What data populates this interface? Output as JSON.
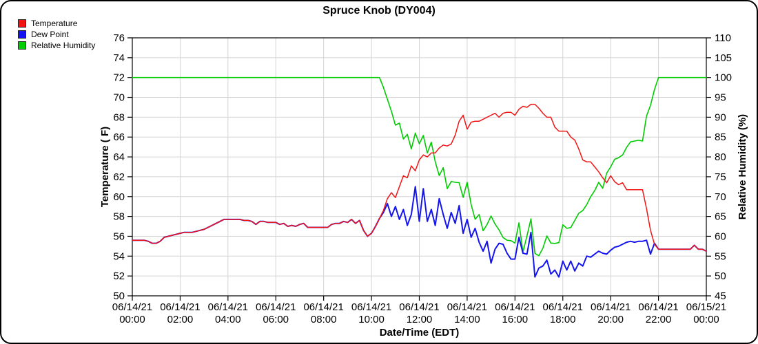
{
  "title": "Spruce Knob (DY004)",
  "legend": {
    "items": [
      {
        "label": "Temperature",
        "color": "#f01414"
      },
      {
        "label": "Dew Point",
        "color": "#1414f0"
      },
      {
        "label": "Relative Humidity",
        "color": "#00cc00"
      }
    ]
  },
  "chart_data": {
    "type": "line",
    "title": "Spruce Knob (DY004)",
    "grid": true,
    "legend_position": "top-left",
    "x_axis": {
      "label": "Date/Time (EDT)",
      "range_hours": [
        0,
        24
      ],
      "tick_hours": [
        0,
        2,
        4,
        6,
        8,
        10,
        12,
        14,
        16,
        18,
        20,
        22,
        24
      ],
      "ticks": [
        {
          "date": "06/14/21",
          "time": "00:00"
        },
        {
          "date": "06/14/21",
          "time": "02:00"
        },
        {
          "date": "06/14/21",
          "time": "04:00"
        },
        {
          "date": "06/14/21",
          "time": "06:00"
        },
        {
          "date": "06/14/21",
          "time": "08:00"
        },
        {
          "date": "06/14/21",
          "time": "10:00"
        },
        {
          "date": "06/14/21",
          "time": "12:00"
        },
        {
          "date": "06/14/21",
          "time": "14:00"
        },
        {
          "date": "06/14/21",
          "time": "16:00"
        },
        {
          "date": "06/14/21",
          "time": "18:00"
        },
        {
          "date": "06/14/21",
          "time": "20:00"
        },
        {
          "date": "06/14/21",
          "time": "22:00"
        },
        {
          "date": "06/15/21",
          "time": "00:00"
        }
      ]
    },
    "y_axis_left": {
      "label": "Temperature ( F)",
      "min": 50,
      "max": 76,
      "tick_step": 2,
      "ticks": [
        76,
        74,
        72,
        70,
        68,
        66,
        64,
        62,
        60,
        58,
        56,
        54,
        52,
        50
      ]
    },
    "y_axis_right": {
      "label": "Relative Humidity (%)",
      "min": 45,
      "max": 110,
      "tick_step": 5,
      "ticks": [
        110,
        105,
        100,
        95,
        90,
        85,
        80,
        75,
        70,
        65,
        60,
        55,
        50,
        45
      ]
    },
    "sample_interval_minutes": 10,
    "series": [
      {
        "name": "Temperature",
        "axis": "left",
        "color": "#f01414",
        "width": 1.5,
        "values": [
          55.6,
          55.6,
          55.6,
          55.6,
          55.5,
          55.3,
          55.3,
          55.5,
          55.9,
          56.0,
          56.1,
          56.2,
          56.3,
          56.4,
          56.4,
          56.4,
          56.5,
          56.6,
          56.7,
          56.9,
          57.1,
          57.3,
          57.5,
          57.7,
          57.7,
          57.7,
          57.7,
          57.7,
          57.6,
          57.6,
          57.5,
          57.2,
          57.5,
          57.5,
          57.4,
          57.4,
          57.4,
          57.2,
          57.3,
          57.0,
          57.1,
          57.0,
          57.2,
          57.3,
          56.9,
          56.9,
          56.9,
          56.9,
          56.9,
          56.9,
          57.2,
          57.3,
          57.3,
          57.5,
          57.4,
          57.7,
          57.3,
          57.6,
          56.6,
          56.0,
          56.3,
          57.0,
          57.8,
          58.6,
          59.8,
          60.4,
          59.9,
          61.0,
          62.1,
          61.9,
          63.1,
          62.6,
          63.7,
          64.2,
          64.0,
          64.4,
          64.4,
          64.9,
          65.2,
          65.1,
          65.3,
          66.2,
          67.6,
          68.2,
          66.8,
          67.5,
          67.6,
          67.6,
          67.8,
          68.0,
          68.2,
          68.4,
          68.0,
          68.4,
          68.5,
          68.5,
          68.2,
          68.8,
          69.1,
          69.0,
          69.3,
          69.3,
          68.9,
          68.4,
          68.0,
          68.0,
          67.0,
          66.6,
          66.6,
          66.6,
          66.0,
          65.7,
          64.8,
          63.7,
          63.5,
          63.5,
          63.0,
          62.5,
          61.9,
          61.4,
          62.1,
          61.5,
          61.2,
          61.4,
          60.7,
          60.7,
          60.7,
          60.7,
          60.7,
          58.8,
          56.6,
          55.2,
          54.7,
          54.7,
          54.7,
          54.7,
          54.7,
          54.7,
          54.7,
          54.7,
          54.7,
          55.1,
          54.7,
          54.7,
          54.5
        ]
      },
      {
        "name": "Dew Point",
        "axis": "left",
        "color": "#1414f0",
        "width": 2.0,
        "values": [
          55.6,
          55.6,
          55.6,
          55.6,
          55.5,
          55.3,
          55.3,
          55.5,
          55.9,
          56.0,
          56.1,
          56.2,
          56.3,
          56.4,
          56.4,
          56.4,
          56.5,
          56.6,
          56.7,
          56.9,
          57.1,
          57.3,
          57.5,
          57.7,
          57.7,
          57.7,
          57.7,
          57.7,
          57.6,
          57.6,
          57.5,
          57.2,
          57.5,
          57.5,
          57.4,
          57.4,
          57.4,
          57.2,
          57.3,
          57.0,
          57.1,
          57.0,
          57.2,
          57.3,
          56.9,
          56.9,
          56.9,
          56.9,
          56.9,
          56.9,
          57.2,
          57.3,
          57.3,
          57.5,
          57.4,
          57.7,
          57.3,
          57.6,
          56.6,
          56.0,
          56.3,
          57.0,
          57.8,
          58.4,
          59.3,
          58.0,
          59.0,
          57.7,
          58.7,
          57.1,
          58.2,
          61.0,
          57.5,
          60.8,
          57.5,
          58.7,
          57.1,
          59.8,
          58.2,
          56.8,
          58.4,
          57.3,
          59.1,
          56.3,
          57.7,
          55.9,
          56.8,
          55.4,
          54.5,
          55.5,
          53.3,
          54.7,
          55.3,
          55.2,
          54.3,
          53.7,
          53.7,
          55.9,
          54.3,
          54.2,
          56.4,
          51.9,
          52.8,
          53.0,
          53.6,
          52.2,
          52.6,
          51.9,
          53.5,
          52.6,
          53.5,
          52.5,
          53.3,
          53.0,
          54.0,
          53.9,
          54.2,
          54.5,
          54.3,
          54.2,
          54.6,
          54.9,
          55.0,
          55.2,
          55.4,
          55.5,
          55.4,
          55.5,
          55.5,
          55.6,
          54.2,
          55.3,
          54.7,
          54.7,
          54.7,
          54.7,
          54.7,
          54.7,
          54.7,
          54.7,
          54.7,
          55.1,
          54.7,
          54.7,
          54.5
        ]
      },
      {
        "name": "Relative Humidity",
        "axis": "right",
        "color": "#00cc00",
        "width": 1.6,
        "values": [
          100,
          100,
          100,
          100,
          100,
          100,
          100,
          100,
          100,
          100,
          100,
          100,
          100,
          100,
          100,
          100,
          100,
          100,
          100,
          100,
          100,
          100,
          100,
          100,
          100,
          100,
          100,
          100,
          100,
          100,
          100,
          100,
          100,
          100,
          100,
          100,
          100,
          100,
          100,
          100,
          100,
          100,
          100,
          100,
          100,
          100,
          100,
          100,
          100,
          100,
          100,
          100,
          100,
          100,
          100,
          100,
          100,
          100,
          100,
          100,
          100,
          100,
          100,
          97.5,
          94.5,
          91.5,
          88.0,
          88.5,
          84.5,
          85.7,
          82.0,
          86.0,
          83.3,
          85.4,
          81.0,
          83.7,
          78.8,
          75.3,
          77.3,
          72.0,
          73.8,
          73.6,
          73.5,
          69.8,
          73.6,
          68.0,
          64.3,
          65.5,
          61.4,
          63.0,
          65.1,
          63.1,
          61.6,
          59.7,
          59.0,
          58.9,
          58.3,
          63.4,
          56.0,
          60.1,
          64.4,
          55.7,
          55.1,
          57.0,
          60.1,
          58.3,
          58.2,
          58.4,
          62.9,
          62.0,
          62.2,
          64.0,
          65.8,
          66.5,
          68.0,
          70.0,
          71.5,
          73.6,
          72.1,
          75.9,
          77.5,
          79.4,
          79.8,
          80.5,
          82.4,
          83.8,
          84.0,
          84.2,
          84.0,
          90.3,
          93.0,
          97.0,
          100,
          100,
          100,
          100,
          100,
          100,
          100,
          100,
          100,
          100,
          100,
          100,
          100
        ]
      }
    ]
  },
  "layout_colors": {
    "grid": "#d4d4d4",
    "frame": "#000000",
    "background": "#ffffff"
  }
}
